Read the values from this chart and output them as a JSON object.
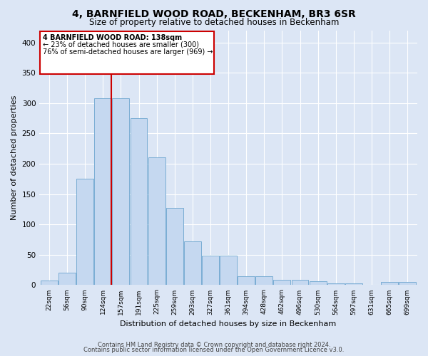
{
  "title": "4, BARNFIELD WOOD ROAD, BECKENHAM, BR3 6SR",
  "subtitle": "Size of property relative to detached houses in Beckenham",
  "xlabel": "Distribution of detached houses by size in Beckenham",
  "ylabel": "Number of detached properties",
  "bar_color": "#c5d8f0",
  "bar_edge_color": "#7aadd4",
  "background_color": "#dce6f5",
  "fig_background_color": "#dce6f5",
  "grid_color": "#ffffff",
  "categories": [
    "22sqm",
    "56sqm",
    "90sqm",
    "124sqm",
    "157sqm",
    "191sqm",
    "225sqm",
    "259sqm",
    "293sqm",
    "327sqm",
    "361sqm",
    "394sqm",
    "428sqm",
    "462sqm",
    "496sqm",
    "530sqm",
    "564sqm",
    "597sqm",
    "631sqm",
    "665sqm",
    "699sqm"
  ],
  "values": [
    7,
    21,
    175,
    308,
    308,
    275,
    210,
    127,
    72,
    49,
    49,
    15,
    15,
    9,
    9,
    6,
    3,
    3,
    0,
    5,
    5
  ],
  "annotation_text_line1": "4 BARNFIELD WOOD ROAD: 138sqm",
  "annotation_text_line2": "← 23% of detached houses are smaller (300)",
  "annotation_text_line3": "76% of semi-detached houses are larger (969) →",
  "vline_color": "#cc0000",
  "annotation_box_edge": "#cc0000",
  "vline_x": 3.48,
  "ylim": [
    0,
    420
  ],
  "yticks": [
    0,
    50,
    100,
    150,
    200,
    250,
    300,
    350,
    400
  ],
  "footer_line1": "Contains HM Land Registry data © Crown copyright and database right 2024.",
  "footer_line2": "Contains public sector information licensed under the Open Government Licence v3.0."
}
